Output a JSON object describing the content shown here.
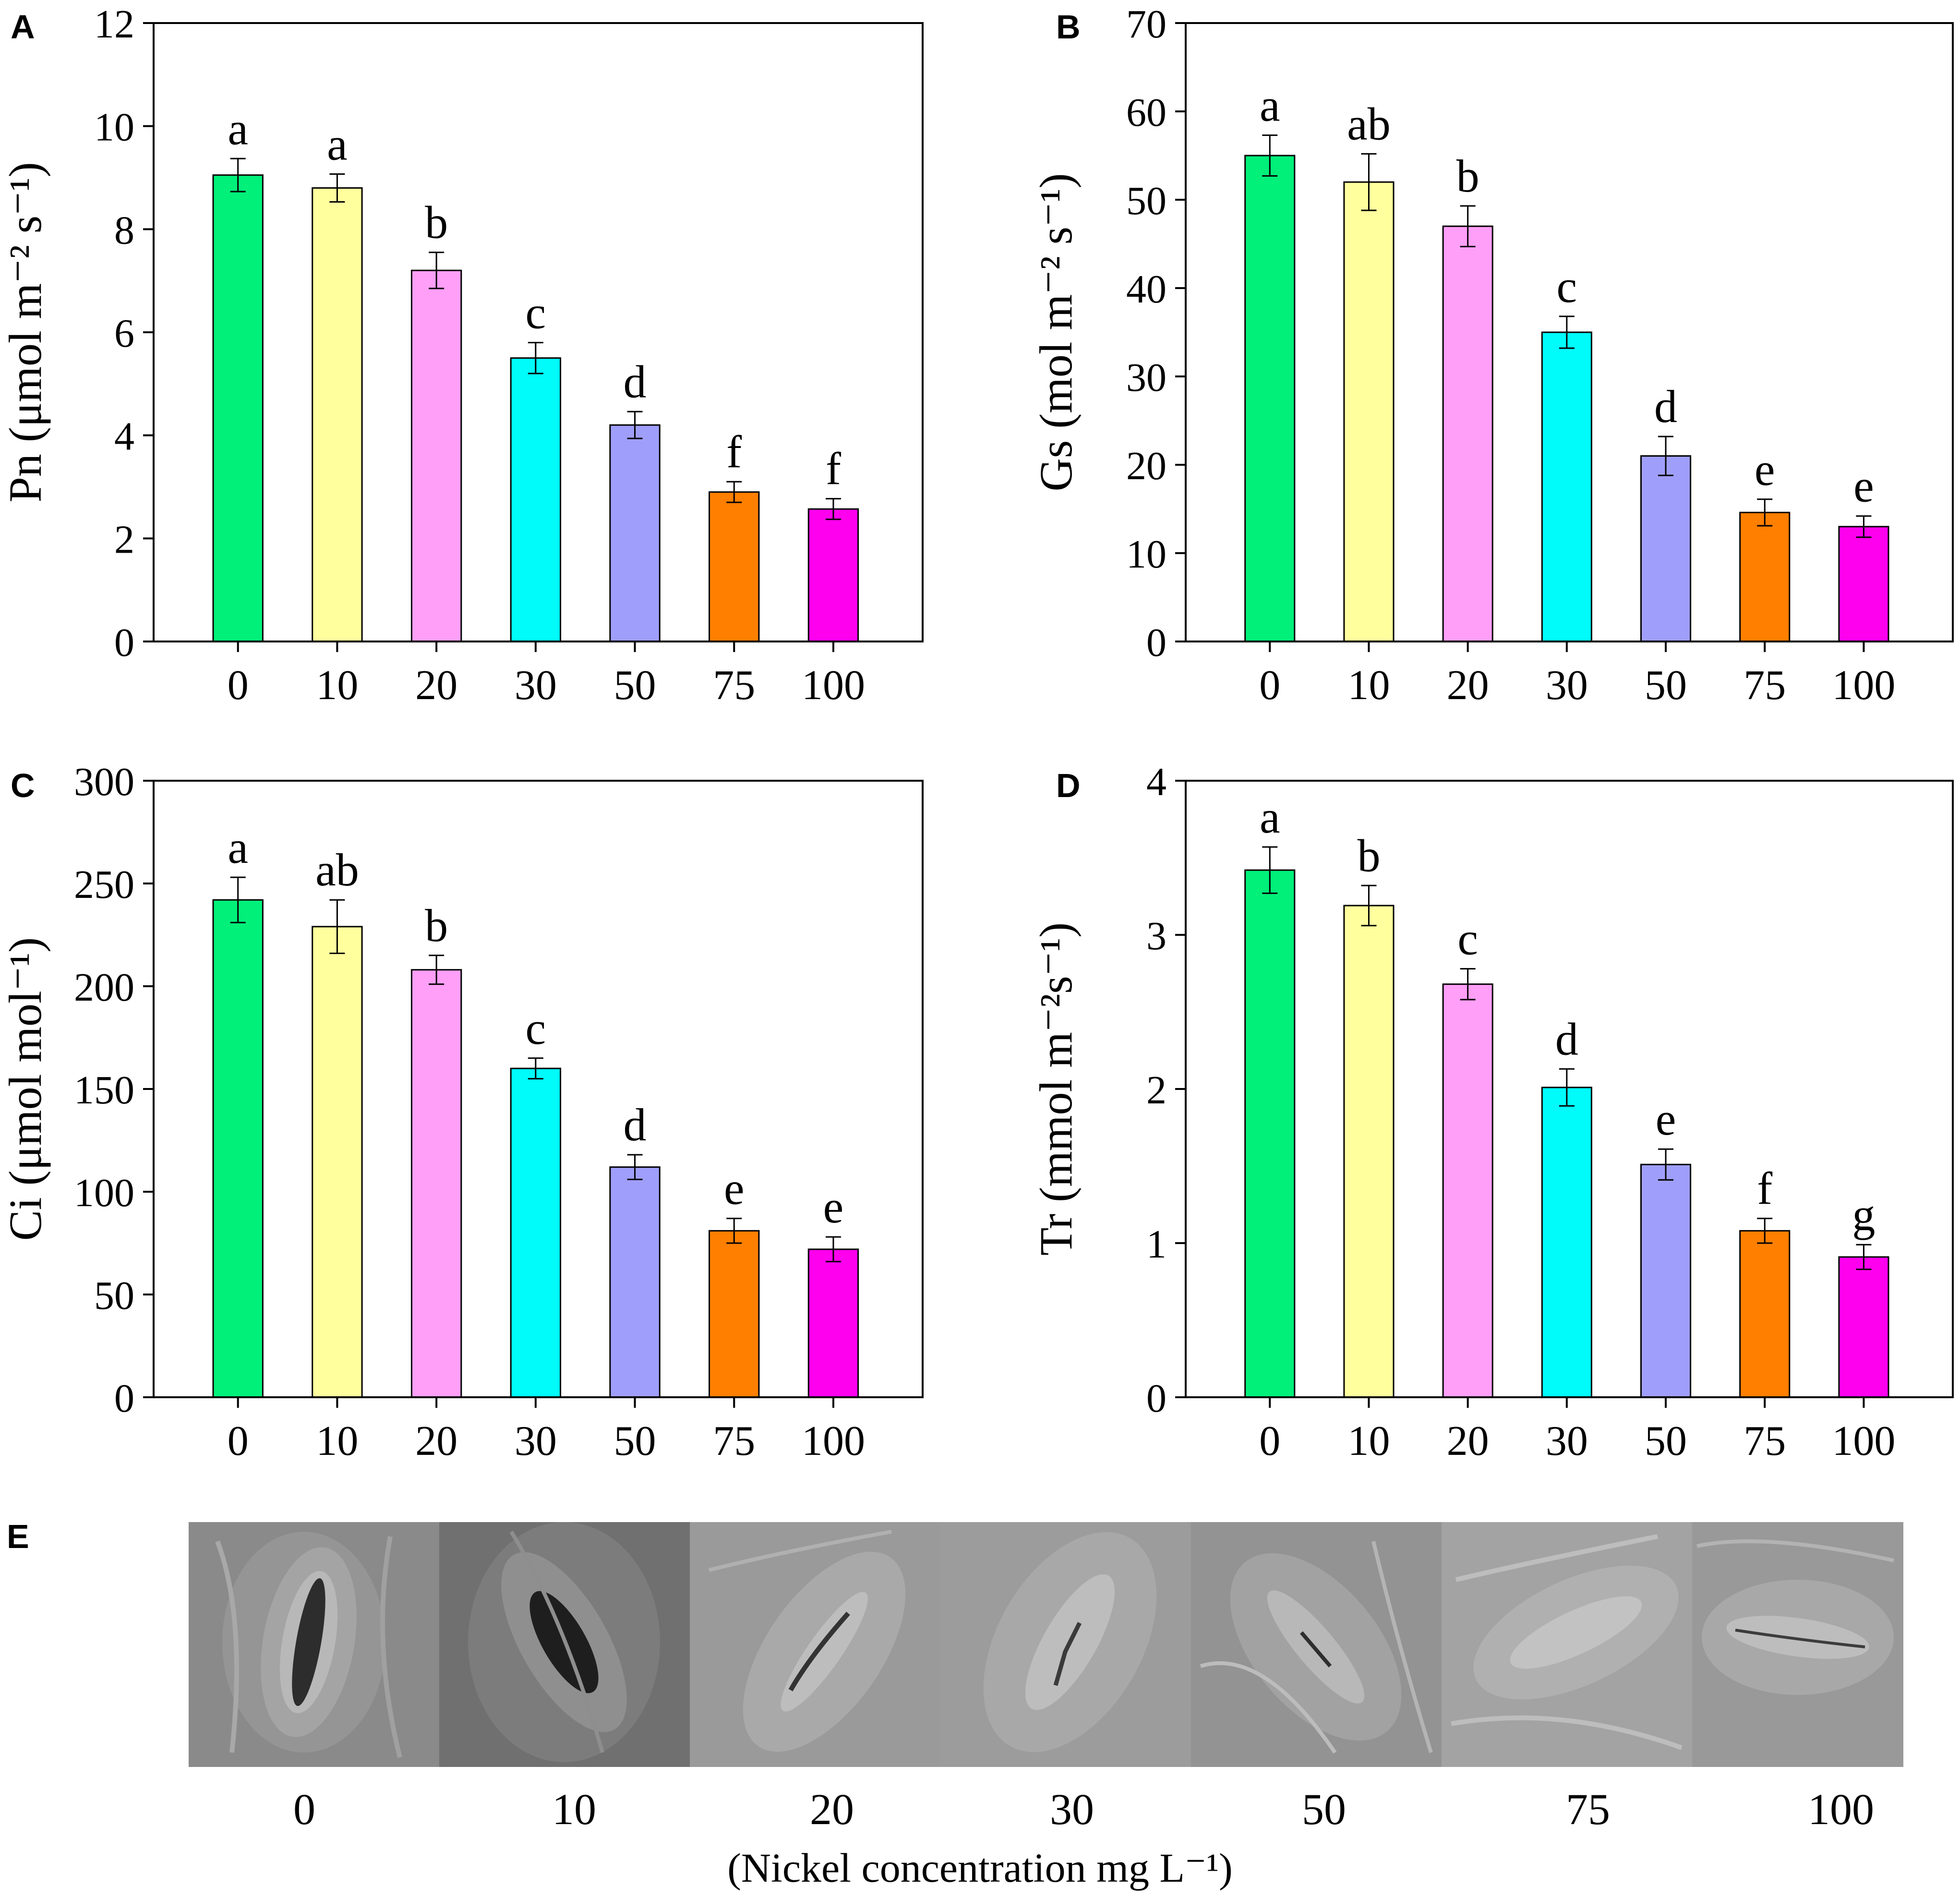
{
  "chart_data": [
    {
      "panel": "A",
      "type": "bar",
      "categories": [
        "0",
        "10",
        "20",
        "30",
        "50",
        "75",
        "100"
      ],
      "values": [
        9.05,
        8.8,
        7.2,
        5.5,
        4.2,
        2.9,
        2.57
      ],
      "errors": [
        0.32,
        0.27,
        0.35,
        0.3,
        0.26,
        0.2,
        0.2
      ],
      "letters": [
        "a",
        "a",
        "b",
        "c",
        "d",
        "f",
        "f"
      ],
      "ylabel": "Pn (μmol m⁻² s⁻¹)",
      "ylim": [
        0,
        12
      ],
      "yticks": [
        "0",
        "2",
        "4",
        "6",
        "8",
        "10",
        "12"
      ],
      "colors": [
        "#00f07a",
        "#ffff9e",
        "#ff9ff8",
        "#00fbfb",
        "#9f9ffb",
        "#ff7f00",
        "#ff00ee"
      ]
    },
    {
      "panel": "B",
      "type": "bar",
      "categories": [
        "0",
        "10",
        "20",
        "30",
        "50",
        "75",
        "100"
      ],
      "values": [
        55,
        52,
        47,
        35,
        21,
        14.6,
        13
      ],
      "errors": [
        2.3,
        3.2,
        2.3,
        1.8,
        2.2,
        1.5,
        1.2
      ],
      "letters": [
        "a",
        "ab",
        "b",
        "c",
        "d",
        "e",
        "e"
      ],
      "ylabel": "Gs (mol m⁻² s⁻¹)",
      "ylim": [
        0,
        70
      ],
      "yticks": [
        "0",
        "10",
        "20",
        "30",
        "40",
        "50",
        "60",
        "70"
      ],
      "colors": [
        "#00f07a",
        "#ffff9e",
        "#ff9ff8",
        "#00fbfb",
        "#9f9ffb",
        "#ff7f00",
        "#ff00ee"
      ]
    },
    {
      "panel": "C",
      "type": "bar",
      "categories": [
        "0",
        "10",
        "20",
        "30",
        "50",
        "75",
        "100"
      ],
      "values": [
        242,
        229,
        208,
        160,
        112,
        81,
        72
      ],
      "errors": [
        11,
        13,
        7,
        5,
        6,
        6,
        6
      ],
      "letters": [
        "a",
        "ab",
        "b",
        "c",
        "d",
        "e",
        "e"
      ],
      "ylabel": "Ci (μmol mol⁻¹)",
      "ylim": [
        0,
        300
      ],
      "yticks": [
        "0",
        "50",
        "100",
        "150",
        "200",
        "250",
        "300"
      ],
      "colors": [
        "#00f07a",
        "#ffff9e",
        "#ff9ff8",
        "#00fbfb",
        "#9f9ffb",
        "#ff7f00",
        "#ff00ee"
      ]
    },
    {
      "panel": "D",
      "type": "bar",
      "categories": [
        "0",
        "10",
        "20",
        "30",
        "50",
        "75",
        "100"
      ],
      "values": [
        3.42,
        3.19,
        2.68,
        2.01,
        1.51,
        1.08,
        0.91
      ],
      "errors": [
        0.15,
        0.13,
        0.1,
        0.12,
        0.1,
        0.08,
        0.08
      ],
      "letters": [
        "a",
        "b",
        "c",
        "d",
        "e",
        "f",
        "g"
      ],
      "ylabel": "Tr (mmol m⁻²s⁻¹)",
      "ylim": [
        0,
        4
      ],
      "yticks": [
        "0",
        "1",
        "2",
        "3",
        "4"
      ],
      "colors": [
        "#00f07a",
        "#ffff9e",
        "#ff9ff8",
        "#00fbfb",
        "#9f9ffb",
        "#ff7f00",
        "#ff00ee"
      ]
    }
  ],
  "panel_e": {
    "letter": "E",
    "labels": [
      "0",
      "10",
      "20",
      "30",
      "50",
      "75",
      "100"
    ],
    "xlabel": "(Nickel concentration mg L⁻¹)"
  }
}
